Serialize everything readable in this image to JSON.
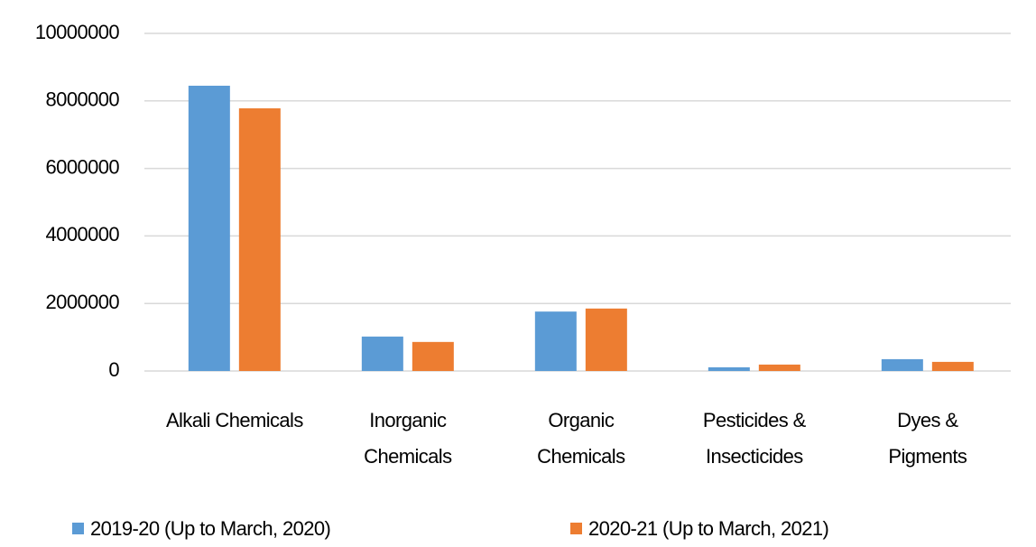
{
  "chart_data": {
    "type": "bar",
    "categories": [
      "Alkali Chemicals",
      "Inorganic Chemicals",
      "Organic Chemicals",
      "Pesticides & Insecticides",
      "Dyes & Pigments"
    ],
    "series": [
      {
        "name": "2019-20 (Up to March, 2020)",
        "color": "#5b9bd5",
        "values": [
          8450000,
          1020000,
          1760000,
          110000,
          350000
        ]
      },
      {
        "name": "2020-21 (Up to March, 2021)",
        "color": "#ed7d31",
        "values": [
          7780000,
          860000,
          1850000,
          190000,
          270000
        ]
      }
    ],
    "ylim": [
      0,
      10000000
    ],
    "yticks": [
      0,
      2000000,
      4000000,
      6000000,
      8000000,
      10000000
    ],
    "grid": true,
    "legend": "bottom"
  }
}
